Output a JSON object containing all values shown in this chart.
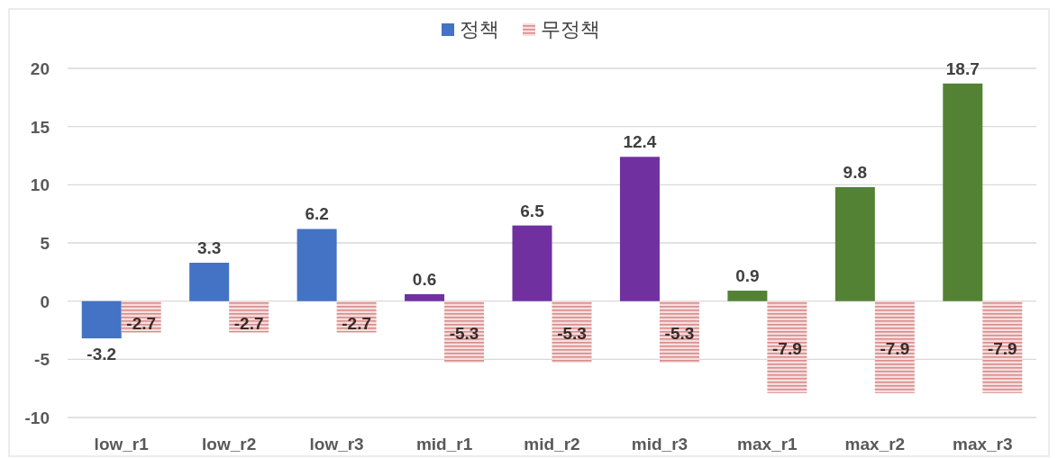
{
  "chart_data": {
    "type": "bar",
    "categories": [
      "low_r1",
      "low_r2",
      "low_r3",
      "mid_r1",
      "mid_r2",
      "mid_r3",
      "max_r1",
      "max_r2",
      "max_r3"
    ],
    "series": [
      {
        "name": "정책",
        "colors": [
          "#4472c4",
          "#4472c4",
          "#4472c4",
          "#7030a0",
          "#7030a0",
          "#7030a0",
          "#548235",
          "#548235",
          "#548235"
        ],
        "values": [
          -3.2,
          3.3,
          6.2,
          0.6,
          6.5,
          12.4,
          0.9,
          9.8,
          18.7
        ]
      },
      {
        "name": "무정책",
        "color": "#d98c8c",
        "values": [
          -2.7,
          -2.7,
          -2.7,
          -5.3,
          -5.3,
          -5.3,
          -7.9,
          -7.9,
          -7.9
        ]
      }
    ],
    "ylim": [
      -10,
      20
    ],
    "yticks": [
      -10,
      -5,
      0,
      5,
      10,
      15,
      20
    ],
    "grid": "y",
    "legend": "top",
    "data_labels": true
  }
}
